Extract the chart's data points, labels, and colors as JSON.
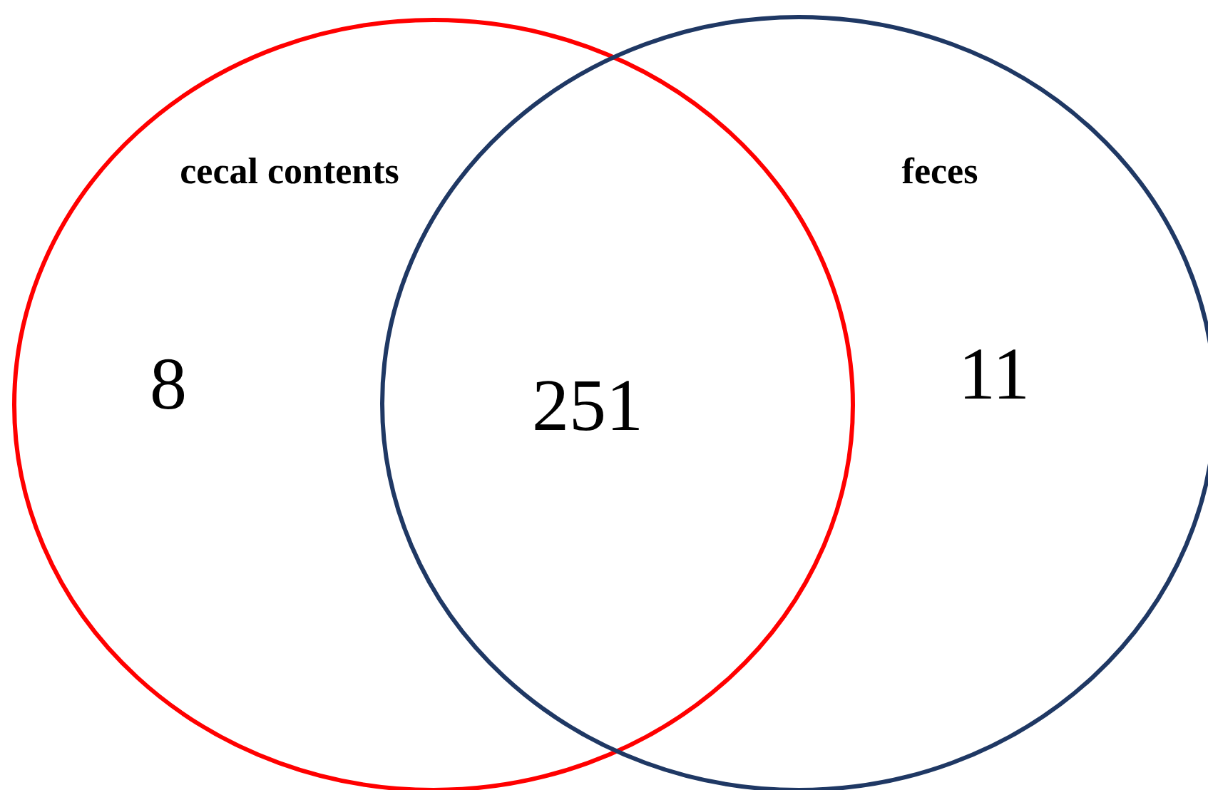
{
  "chart_data": {
    "type": "other",
    "categories": [
      "cecal contents",
      null,
      "feces"
    ],
    "values": [
      8,
      251,
      11
    ],
    "colors": [
      "#ff0000",
      null,
      "#1f3864"
    ],
    "data_labels": true
  }
}
